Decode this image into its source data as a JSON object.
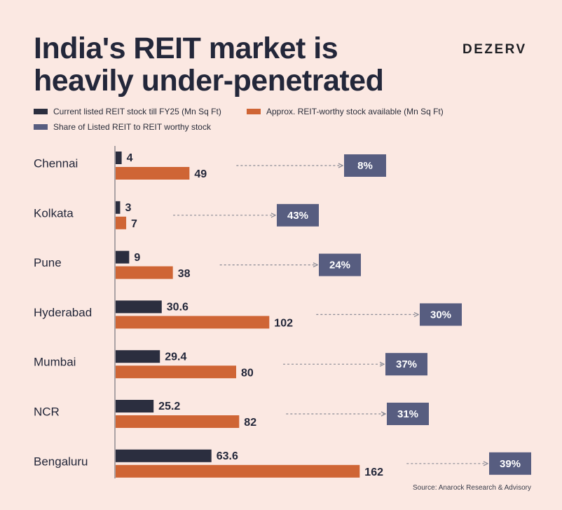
{
  "title_lines": [
    "India's REIT market is",
    "heavily under-penetrated"
  ],
  "brand": "DEZERV",
  "legend": {
    "current": "Current listed REIT stock till FY25 (Mn Sq Ft)",
    "worthy": "Approx. REIT-worthy stock available (Mn Sq Ft)",
    "share": "Share of Listed REIT to REIT worthy stock"
  },
  "colors": {
    "current": "#2b2e3f",
    "worthy": "#cf6535",
    "share": "#575d80",
    "background": "#fbe8e2",
    "arrow": "#8a8a95"
  },
  "source": "Source: Anarock Research & Advisory",
  "chart_data": {
    "type": "bar",
    "orientation": "horizontal",
    "categories": [
      "Chennai",
      "Kolkata",
      "Pune",
      "Hyderabad",
      "Mumbai",
      "NCR",
      "Bengaluru"
    ],
    "series": [
      {
        "name": "Current listed REIT stock till FY25 (Mn Sq Ft)",
        "values": [
          4,
          3,
          9,
          30.6,
          29.4,
          25.2,
          63.6
        ]
      },
      {
        "name": "Approx. REIT-worthy stock available (Mn Sq Ft)",
        "values": [
          49,
          7,
          38,
          102,
          80,
          82,
          162
        ]
      }
    ],
    "value_labels": {
      "current": [
        "4",
        "3",
        "9",
        "30.6",
        "29.4",
        "25.2",
        "63.6"
      ],
      "worthy": [
        "49",
        "7",
        "38",
        "102",
        "80",
        "82",
        "162"
      ]
    },
    "share": {
      "name": "Share of Listed REIT to REIT worthy stock",
      "labels": [
        "8%",
        "43%",
        "24%",
        "30%",
        "37%",
        "31%",
        "39%"
      ]
    },
    "legend_position": "top",
    "grid": false
  }
}
